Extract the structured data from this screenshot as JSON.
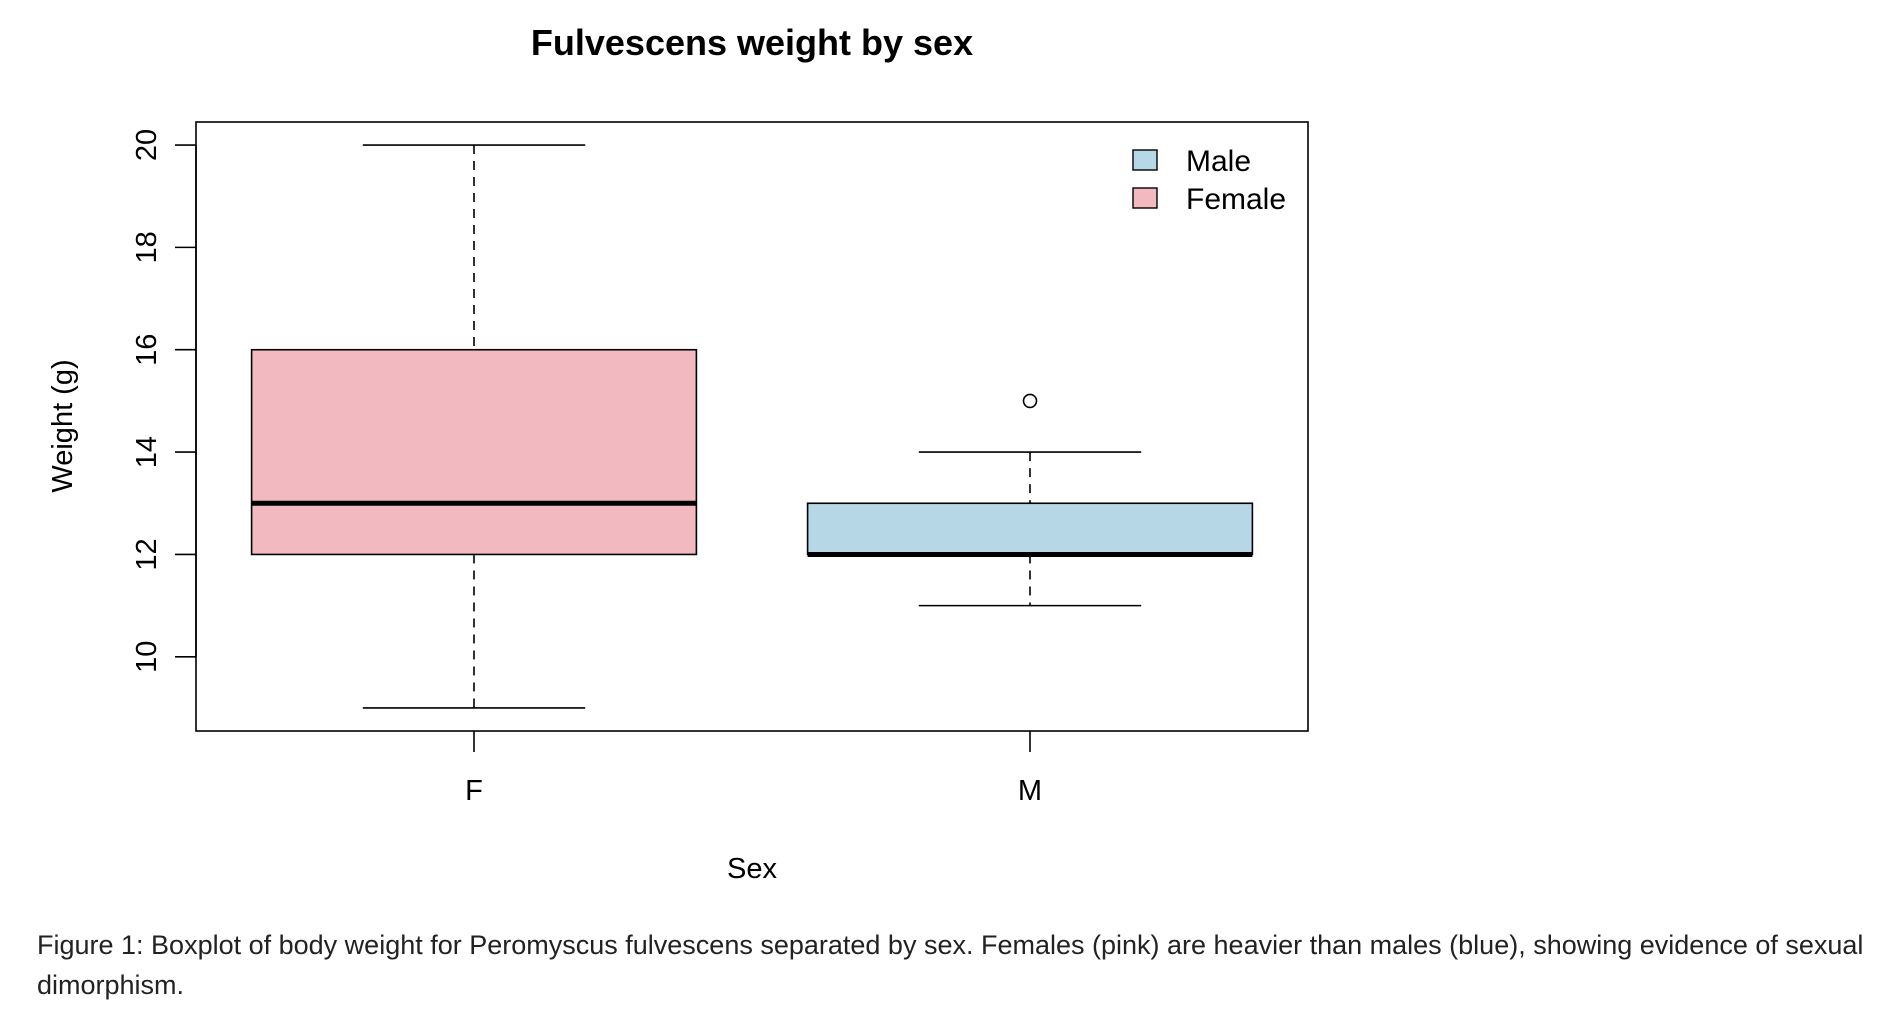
{
  "chart_data": {
    "type": "boxplot",
    "title": "Fulvescens weight by sex",
    "xlabel": "Sex",
    "ylabel": "Weight (g)",
    "ylim": [
      8.55,
      20.45
    ],
    "yticks": [
      10,
      12,
      14,
      16,
      18,
      20
    ],
    "categories": [
      "F",
      "M"
    ],
    "boxes": [
      {
        "category": "F",
        "min": 9,
        "q1": 12,
        "median": 13,
        "q3": 16,
        "max": 20,
        "outliers": [],
        "color": "#f2b9c1"
      },
      {
        "category": "M",
        "min": 11,
        "q1": 12,
        "median": 12,
        "q3": 13,
        "max": 14,
        "outliers": [
          15
        ],
        "color": "#b6d8e6"
      }
    ],
    "legend": {
      "position": "top-right",
      "items": [
        {
          "label": "Male",
          "color": "#b6d8e6"
        },
        {
          "label": "Female",
          "color": "#f2b9c1"
        }
      ]
    },
    "grid": false
  },
  "caption": "Figure 1: Boxplot of body weight for Peromyscus fulvescens separated by sex. Females (pink) are heavier than males (blue), showing evidence of sexual dimorphism."
}
